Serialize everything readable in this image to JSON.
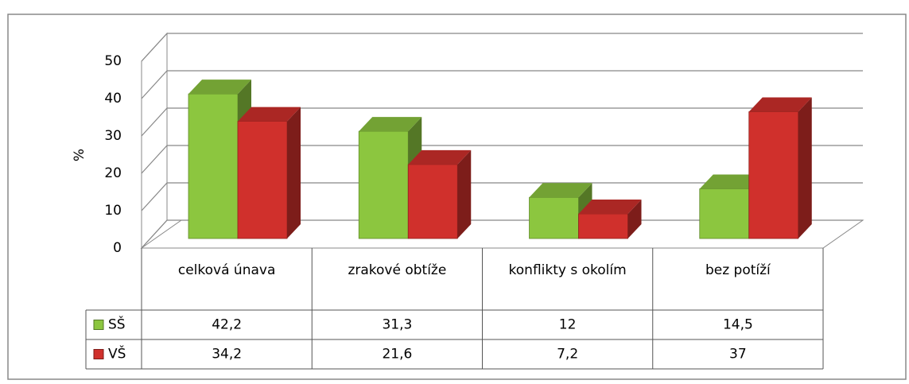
{
  "chart_data": {
    "type": "bar3d",
    "y_label": "%",
    "categories": [
      "celková únava",
      "zrakové obtíže",
      "konflikty s okolím",
      "bez potíží"
    ],
    "series": [
      {
        "name": "SŠ",
        "color": "#8cc63f",
        "values": [
          42.2,
          31.3,
          12,
          14.5
        ],
        "value_labels": [
          "42,2",
          "31,3",
          "12",
          "14,5"
        ]
      },
      {
        "name": "VŠ",
        "color": "#d0302c",
        "values": [
          34.2,
          21.6,
          7.2,
          37
        ],
        "value_labels": [
          "34,2",
          "21,6",
          "7,2",
          "37"
        ]
      }
    ],
    "ylim": [
      0,
      50
    ],
    "yticks": [
      0,
      10,
      20,
      30,
      40,
      50
    ],
    "grid": true
  }
}
